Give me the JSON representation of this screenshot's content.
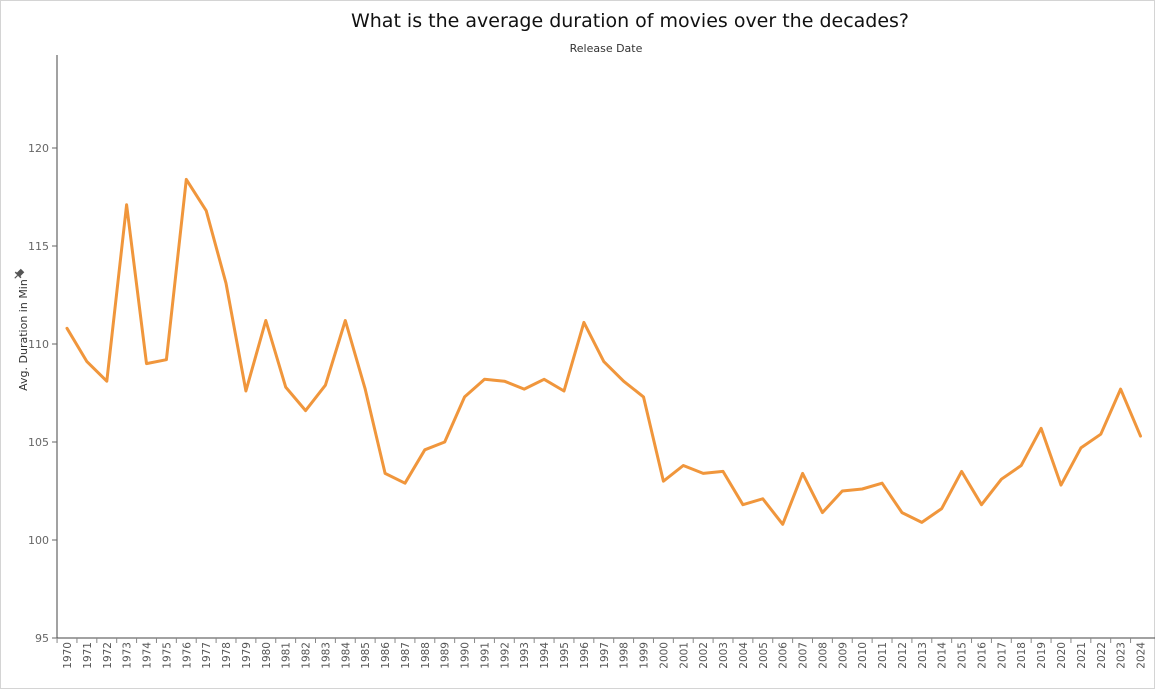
{
  "chart_data": {
    "type": "line",
    "title": "What is the average duration of movies over the decades?",
    "xlabel": "Release Date",
    "ylabel": "Avg. Duration in Min",
    "ylim": [
      95,
      125
    ],
    "y_ticks": [
      95,
      100,
      105,
      110,
      115,
      120
    ],
    "line_color": "#f0963c",
    "x": [
      "1970",
      "1971",
      "1972",
      "1973",
      "1974",
      "1975",
      "1976",
      "1977",
      "1978",
      "1979",
      "1980",
      "1981",
      "1982",
      "1983",
      "1984",
      "1985",
      "1986",
      "1987",
      "1988",
      "1989",
      "1990",
      "1991",
      "1992",
      "1993",
      "1994",
      "1995",
      "1996",
      "1997",
      "1998",
      "1999",
      "2000",
      "2001",
      "2002",
      "2003",
      "2004",
      "2005",
      "2006",
      "2007",
      "2008",
      "2009",
      "2010",
      "2011",
      "2012",
      "2013",
      "2014",
      "2015",
      "2016",
      "2017",
      "2018",
      "2019",
      "2020",
      "2021",
      "2022",
      "2023",
      "2024"
    ],
    "series": [
      {
        "values": [
          110.8,
          109.1,
          108.1,
          117.1,
          109.0,
          109.2,
          118.4,
          116.8,
          113.1,
          107.6,
          111.2,
          107.8,
          106.6,
          107.9,
          111.2,
          107.7,
          103.4,
          102.9,
          104.6,
          105.0,
          107.3,
          108.2,
          108.1,
          107.7,
          108.2,
          107.6,
          111.1,
          109.1,
          108.1,
          107.3,
          103.0,
          103.8,
          103.4,
          103.5,
          101.8,
          102.1,
          100.8,
          103.4,
          101.4,
          102.5,
          102.6,
          102.9,
          101.4,
          100.9,
          101.6,
          103.5,
          101.8,
          103.1,
          103.8,
          105.7,
          102.8,
          104.7,
          105.4,
          107.7,
          105.3
        ]
      }
    ]
  }
}
